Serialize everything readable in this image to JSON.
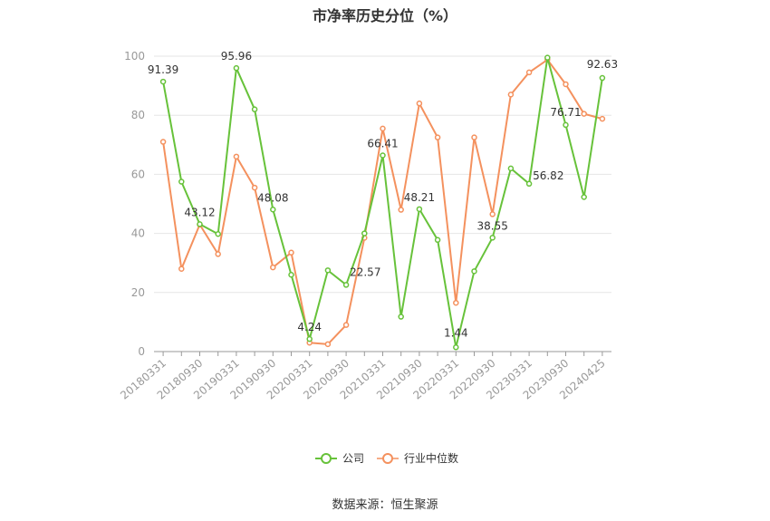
{
  "chart_data": {
    "type": "line",
    "title": "市净率历史分位（%）",
    "source": "数据来源：恒生聚源",
    "ylim": [
      0,
      100
    ],
    "yticks": [
      0,
      20,
      40,
      60,
      80,
      100
    ],
    "x_tick_labels": [
      "20180331",
      "20180930",
      "20190331",
      "20190930",
      "20200331",
      "20200930",
      "20210331",
      "20210930",
      "20220331",
      "20220930",
      "20230331",
      "20230930",
      "20240425"
    ],
    "x": [
      "20180331",
      "20180630",
      "20180930",
      "20181231",
      "20190331",
      "20190630",
      "20190930",
      "20191231",
      "20200331",
      "20200630",
      "20200930",
      "20201231",
      "20210331",
      "20210630",
      "20210930",
      "20211231",
      "20220331",
      "20220630",
      "20220930",
      "20221231",
      "20230331",
      "20230630",
      "20230930",
      "20231231",
      "20240425"
    ],
    "series": [
      {
        "name": "公司",
        "color": "#67c23a",
        "values": [
          91.39,
          57.5,
          43.12,
          39.8,
          95.96,
          82.0,
          48.08,
          26.0,
          4.24,
          27.5,
          22.57,
          40.0,
          66.41,
          11.8,
          48.21,
          37.8,
          1.44,
          27.2,
          38.55,
          62.0,
          56.82,
          99.5,
          76.71,
          52.3,
          92.63
        ]
      },
      {
        "name": "行业中位数",
        "color": "#f4915e",
        "values": [
          71.0,
          28.0,
          43.0,
          33.0,
          66.0,
          55.5,
          28.5,
          33.5,
          3.0,
          2.5,
          9.0,
          38.5,
          75.5,
          48.0,
          84.0,
          72.5,
          16.5,
          72.5,
          46.5,
          87.0,
          94.5,
          98.8,
          90.5,
          80.5,
          78.8
        ]
      }
    ],
    "data_labels": [
      {
        "index": 0,
        "text": "91.39"
      },
      {
        "index": 2,
        "text": "43.12"
      },
      {
        "index": 4,
        "text": "95.96"
      },
      {
        "index": 6,
        "text": "48.08"
      },
      {
        "index": 8,
        "text": "4.24"
      },
      {
        "index": 10,
        "text": "22.57"
      },
      {
        "index": 12,
        "text": "66.41"
      },
      {
        "index": 14,
        "text": "48.21"
      },
      {
        "index": 16,
        "text": "1.44"
      },
      {
        "index": 18,
        "text": "38.55"
      },
      {
        "index": 20,
        "text": "56.82"
      },
      {
        "index": 22,
        "text": "76.71"
      },
      {
        "index": 24,
        "text": "92.63"
      }
    ],
    "legend_position": "bottom-center",
    "grid": true
  }
}
